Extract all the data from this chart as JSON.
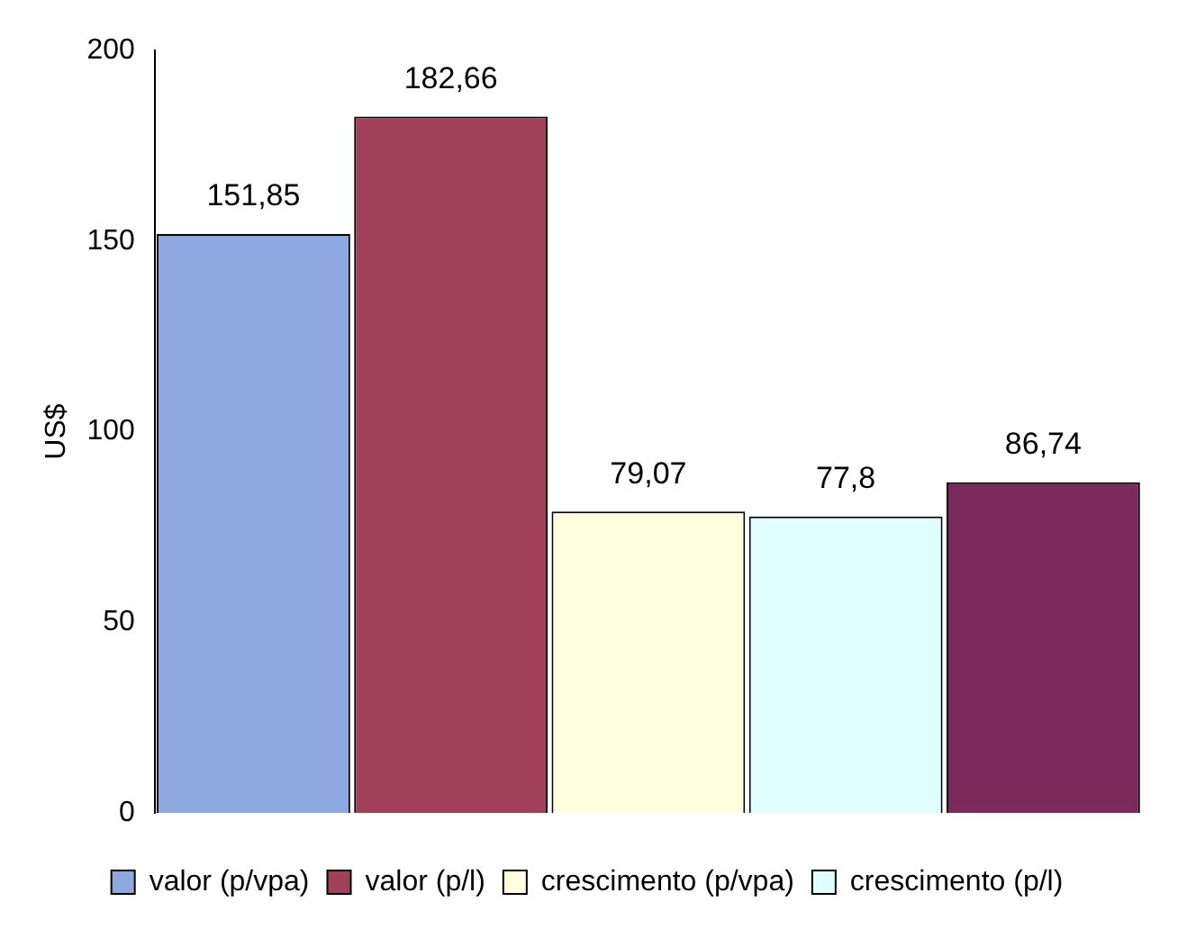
{
  "chart_data": {
    "type": "bar",
    "ylabel": "US$",
    "categories": [
      null
    ],
    "series": [
      {
        "name": "valor (p/vpa)",
        "color": "#8ea9e0",
        "values": [
          151.85
        ],
        "value_labels": [
          "151,85"
        ]
      },
      {
        "name": "valor (p/l)",
        "color": "#a0405a",
        "values": [
          182.66
        ],
        "value_labels": [
          "182,66"
        ]
      },
      {
        "name": "crescimento (p/vpa)",
        "color": "#ffffe0",
        "values": [
          79.07
        ],
        "value_labels": [
          "79,07"
        ]
      },
      {
        "name": "crescimento (p/l)",
        "color": "#e0ffff",
        "values": [
          77.8
        ],
        "value_labels": [
          "77,8"
        ]
      },
      {
        "color": "#7a2a5a",
        "values": [
          86.74
        ],
        "value_labels": [
          "86,74"
        ]
      }
    ],
    "ylim": [
      0,
      200
    ],
    "yticks": [
      0,
      50,
      100,
      150,
      200
    ],
    "grid": false,
    "legend": "bottom"
  }
}
